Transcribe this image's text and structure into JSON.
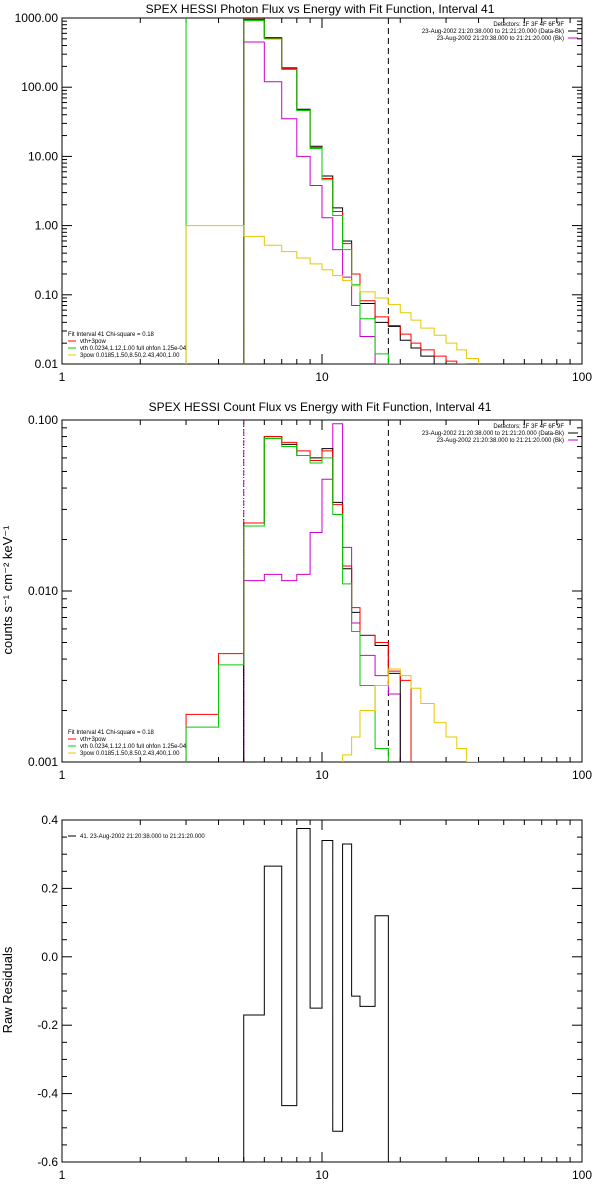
{
  "panels": [
    {
      "title": "SPEX HESSI Photon Flux vs Energy with Fit Function, Interval 41",
      "info": [
        {
          "text": "Detectors: 1F 3F 4F 6F 9F",
          "color": "#000000",
          "swatch": false
        },
        {
          "text": "23-Aug-2002 21:20:38.000 to 21:21:20.000 (Data-Bk)",
          "color": "#000000",
          "swatch": true
        },
        {
          "text": "23-Aug-2002 21:20:38.000 to 21:21:20.000 (Bk)",
          "color": "#cc00cc",
          "swatch": true
        }
      ],
      "fit_legend": [
        {
          "text": "Fit Interval 41    Chi-square = 0.18",
          "color": "#000000",
          "swatch": false
        },
        {
          "text": "vth+3pow",
          "color": "#ff0000",
          "swatch": true
        },
        {
          "text": "vth 0.0234,1.12,1.00  full ohfon 1.25e-04",
          "color": "#00cc00",
          "swatch": true
        },
        {
          "text": "3pow 0.0185,1.50,8.50,2.43,400,1.00",
          "color": "#e6c800",
          "swatch": true
        }
      ]
    },
    {
      "title": "SPEX HESSI Count Flux vs Energy with Fit Function, Interval 41",
      "ylabel": "counts s⁻¹ cm⁻² keV⁻¹",
      "info": [
        {
          "text": "Detectors: 1F 3F 4F 6F 9F",
          "color": "#000000",
          "swatch": false
        },
        {
          "text": "23-Aug-2002 21:20:38.000 to 21:21:20.000 (Data-Bk)",
          "color": "#000000",
          "swatch": true
        },
        {
          "text": "23-Aug-2002 21:20:38.000 to 21:21:20.000 (Bk)",
          "color": "#cc00cc",
          "swatch": true
        }
      ],
      "fit_legend": [
        {
          "text": "Fit Interval 41    Chi-square = 0.18",
          "color": "#000000",
          "swatch": false
        },
        {
          "text": "vth+3pow",
          "color": "#ff0000",
          "swatch": true
        },
        {
          "text": "vth 0.0234,1.12,1.00  full ohfon 1.25e-04",
          "color": "#00cc00",
          "swatch": true
        },
        {
          "text": "3pow 0.0185,1.50,8.50,2.43,400,1.00",
          "color": "#e6c800",
          "swatch": true
        }
      ]
    },
    {
      "title": "",
      "ylabel": "Raw Residuals",
      "info": [],
      "fit_legend": [
        {
          "text": "41. 23-Aug-2002 21:20:38.000 to 21:21:20.000",
          "color": "#000000",
          "swatch": true
        }
      ]
    }
  ],
  "chart_data": [
    {
      "type": "line",
      "step": true,
      "title": "SPEX HESSI Photon Flux vs Energy with Fit Function, Interval 41",
      "xscale": "log",
      "yscale": "log",
      "xlim": [
        1,
        100
      ],
      "ylim": [
        0.01,
        1000
      ],
      "xticks": [
        1,
        10,
        100
      ],
      "xticklabels": [
        "1",
        "10",
        "100"
      ],
      "yticks": [
        0.01,
        0.1,
        1,
        10,
        100,
        1000
      ],
      "yticklabels": [
        "0.01",
        "0.10",
        "1.00",
        "10.00",
        "100.00",
        "1000.00"
      ],
      "vlines": [
        {
          "x": 3,
          "color": "#00cc00",
          "style": "solid"
        },
        {
          "x": 5,
          "color": "#cc00cc",
          "style": "dashed"
        },
        {
          "x": 18,
          "color": "#000000",
          "style": "dashed"
        }
      ],
      "edges": [
        3,
        5,
        6,
        7,
        8,
        9,
        10,
        11,
        12,
        13,
        14,
        16,
        18,
        20,
        22,
        24,
        27,
        30,
        33,
        36,
        40
      ],
      "series": [
        {
          "color": "#cc00cc",
          "values": [
            null,
            450,
            120,
            35,
            10,
            3.8,
            1.3,
            0.45,
            0.18,
            0.07,
            0.025,
            0.01,
            0.004,
            null,
            null,
            null,
            null,
            null,
            null,
            null
          ]
        },
        {
          "color": "#000000",
          "values": [
            null,
            950,
            520,
            190,
            48,
            14,
            5.2,
            1.8,
            0.6,
            0.2,
            0.075,
            0.04,
            0.035,
            0.022,
            0.017,
            0.013,
            null,
            null,
            null,
            null
          ]
        },
        {
          "color": "#ff0000",
          "values": [
            null,
            960,
            510,
            185,
            47,
            13.5,
            4.8,
            1.6,
            0.55,
            0.2,
            0.082,
            0.048,
            0.036,
            0.027,
            0.02,
            0.016,
            0.013,
            0.011,
            0.01,
            null
          ]
        },
        {
          "color": "#00cc00",
          "values": [
            null,
            920,
            500,
            180,
            46,
            13,
            4.6,
            1.4,
            0.45,
            0.14,
            0.045,
            0.014,
            0.0035,
            null,
            null,
            null,
            null,
            null,
            null,
            null
          ]
        },
        {
          "color": "#e6c800",
          "values": [
            1.0,
            0.7,
            0.52,
            0.42,
            0.34,
            0.28,
            0.23,
            0.19,
            0.16,
            0.135,
            0.11,
            0.09,
            0.072,
            0.055,
            0.043,
            0.033,
            0.026,
            0.02,
            0.016,
            0.012
          ]
        }
      ]
    },
    {
      "type": "line",
      "step": true,
      "title": "SPEX HESSI Count Flux vs Energy with Fit Function, Interval 41",
      "ylabel": "counts s⁻¹ cm⁻² keV⁻¹",
      "xscale": "log",
      "yscale": "log",
      "xlim": [
        1,
        100
      ],
      "ylim": [
        0.001,
        0.1
      ],
      "xticks": [
        1,
        10,
        100
      ],
      "xticklabels": [
        "1",
        "10",
        "100"
      ],
      "yticks": [
        0.001,
        0.01,
        0.1
      ],
      "yticklabels": [
        "0.001",
        "0.010",
        "0.100"
      ],
      "vlines": [
        {
          "x": 5,
          "color": "#000000",
          "style": "dotted"
        },
        {
          "x": 5,
          "color": "#cc00cc",
          "style": "dashed"
        },
        {
          "x": 18,
          "color": "#000000",
          "style": "dashed"
        }
      ],
      "edges": [
        3,
        4,
        5,
        6,
        7,
        8,
        9,
        10,
        11,
        12,
        13,
        14,
        16,
        18,
        20,
        22,
        24,
        27,
        30,
        33,
        36,
        40
      ],
      "series": [
        {
          "color": "#cc00cc",
          "values": [
            null,
            null,
            0.0115,
            0.0125,
            0.0115,
            0.0125,
            0.022,
            0.045,
            0.095,
            0.018,
            0.0065,
            0.0042,
            0.0032,
            0.0025,
            null,
            null,
            null,
            null,
            null,
            null,
            null
          ]
        },
        {
          "color": "#000000",
          "values": [
            null,
            null,
            0.025,
            0.08,
            0.072,
            0.062,
            0.06,
            0.068,
            0.033,
            0.0135,
            0.0075,
            0.0055,
            0.0048,
            0.0033,
            null,
            null,
            null,
            null,
            null,
            null,
            null
          ]
        },
        {
          "color": "#ff0000",
          "values": [
            0.0019,
            0.0043,
            0.025,
            0.08,
            0.074,
            0.066,
            0.058,
            0.066,
            0.032,
            0.014,
            0.008,
            0.0055,
            0.005,
            0.0034,
            0.003,
            null,
            null,
            null,
            null,
            null,
            null
          ]
        },
        {
          "color": "#00cc00",
          "values": [
            0.0016,
            0.0037,
            0.024,
            0.078,
            0.07,
            0.062,
            0.056,
            0.06,
            0.028,
            0.011,
            0.0058,
            0.0028,
            0.0012,
            null,
            null,
            null,
            null,
            null,
            null,
            null,
            null
          ]
        },
        {
          "color": "#e6c800",
          "values": [
            null,
            null,
            null,
            null,
            null,
            null,
            null,
            null,
            null,
            0.0011,
            0.0014,
            0.002,
            0.0028,
            0.0035,
            0.0032,
            0.0027,
            0.0022,
            0.0017,
            0.0014,
            0.0012,
            0.001
          ]
        }
      ]
    },
    {
      "type": "line",
      "step": true,
      "ylabel": "Raw Residuals",
      "xscale": "log",
      "yscale": "linear",
      "xlim": [
        1,
        100
      ],
      "ylim": [
        -0.6,
        0.4
      ],
      "xticks": [
        1,
        10,
        100
      ],
      "xticklabels": [
        "1",
        "10",
        "100"
      ],
      "yticks": [
        -0.6,
        -0.4,
        -0.2,
        0.0,
        0.2,
        0.4
      ],
      "yticklabels": [
        "-0.6",
        "-0.4",
        "-0.2",
        "0.0",
        "0.2",
        "0.4"
      ],
      "edges": [
        5,
        6,
        7,
        8,
        9,
        10,
        11,
        12,
        13,
        14,
        16,
        18
      ],
      "series": [
        {
          "color": "#000000",
          "values": [
            -0.17,
            0.265,
            -0.435,
            0.375,
            -0.15,
            0.34,
            -0.51,
            0.33,
            -0.115,
            -0.145,
            0.12
          ]
        }
      ]
    }
  ]
}
